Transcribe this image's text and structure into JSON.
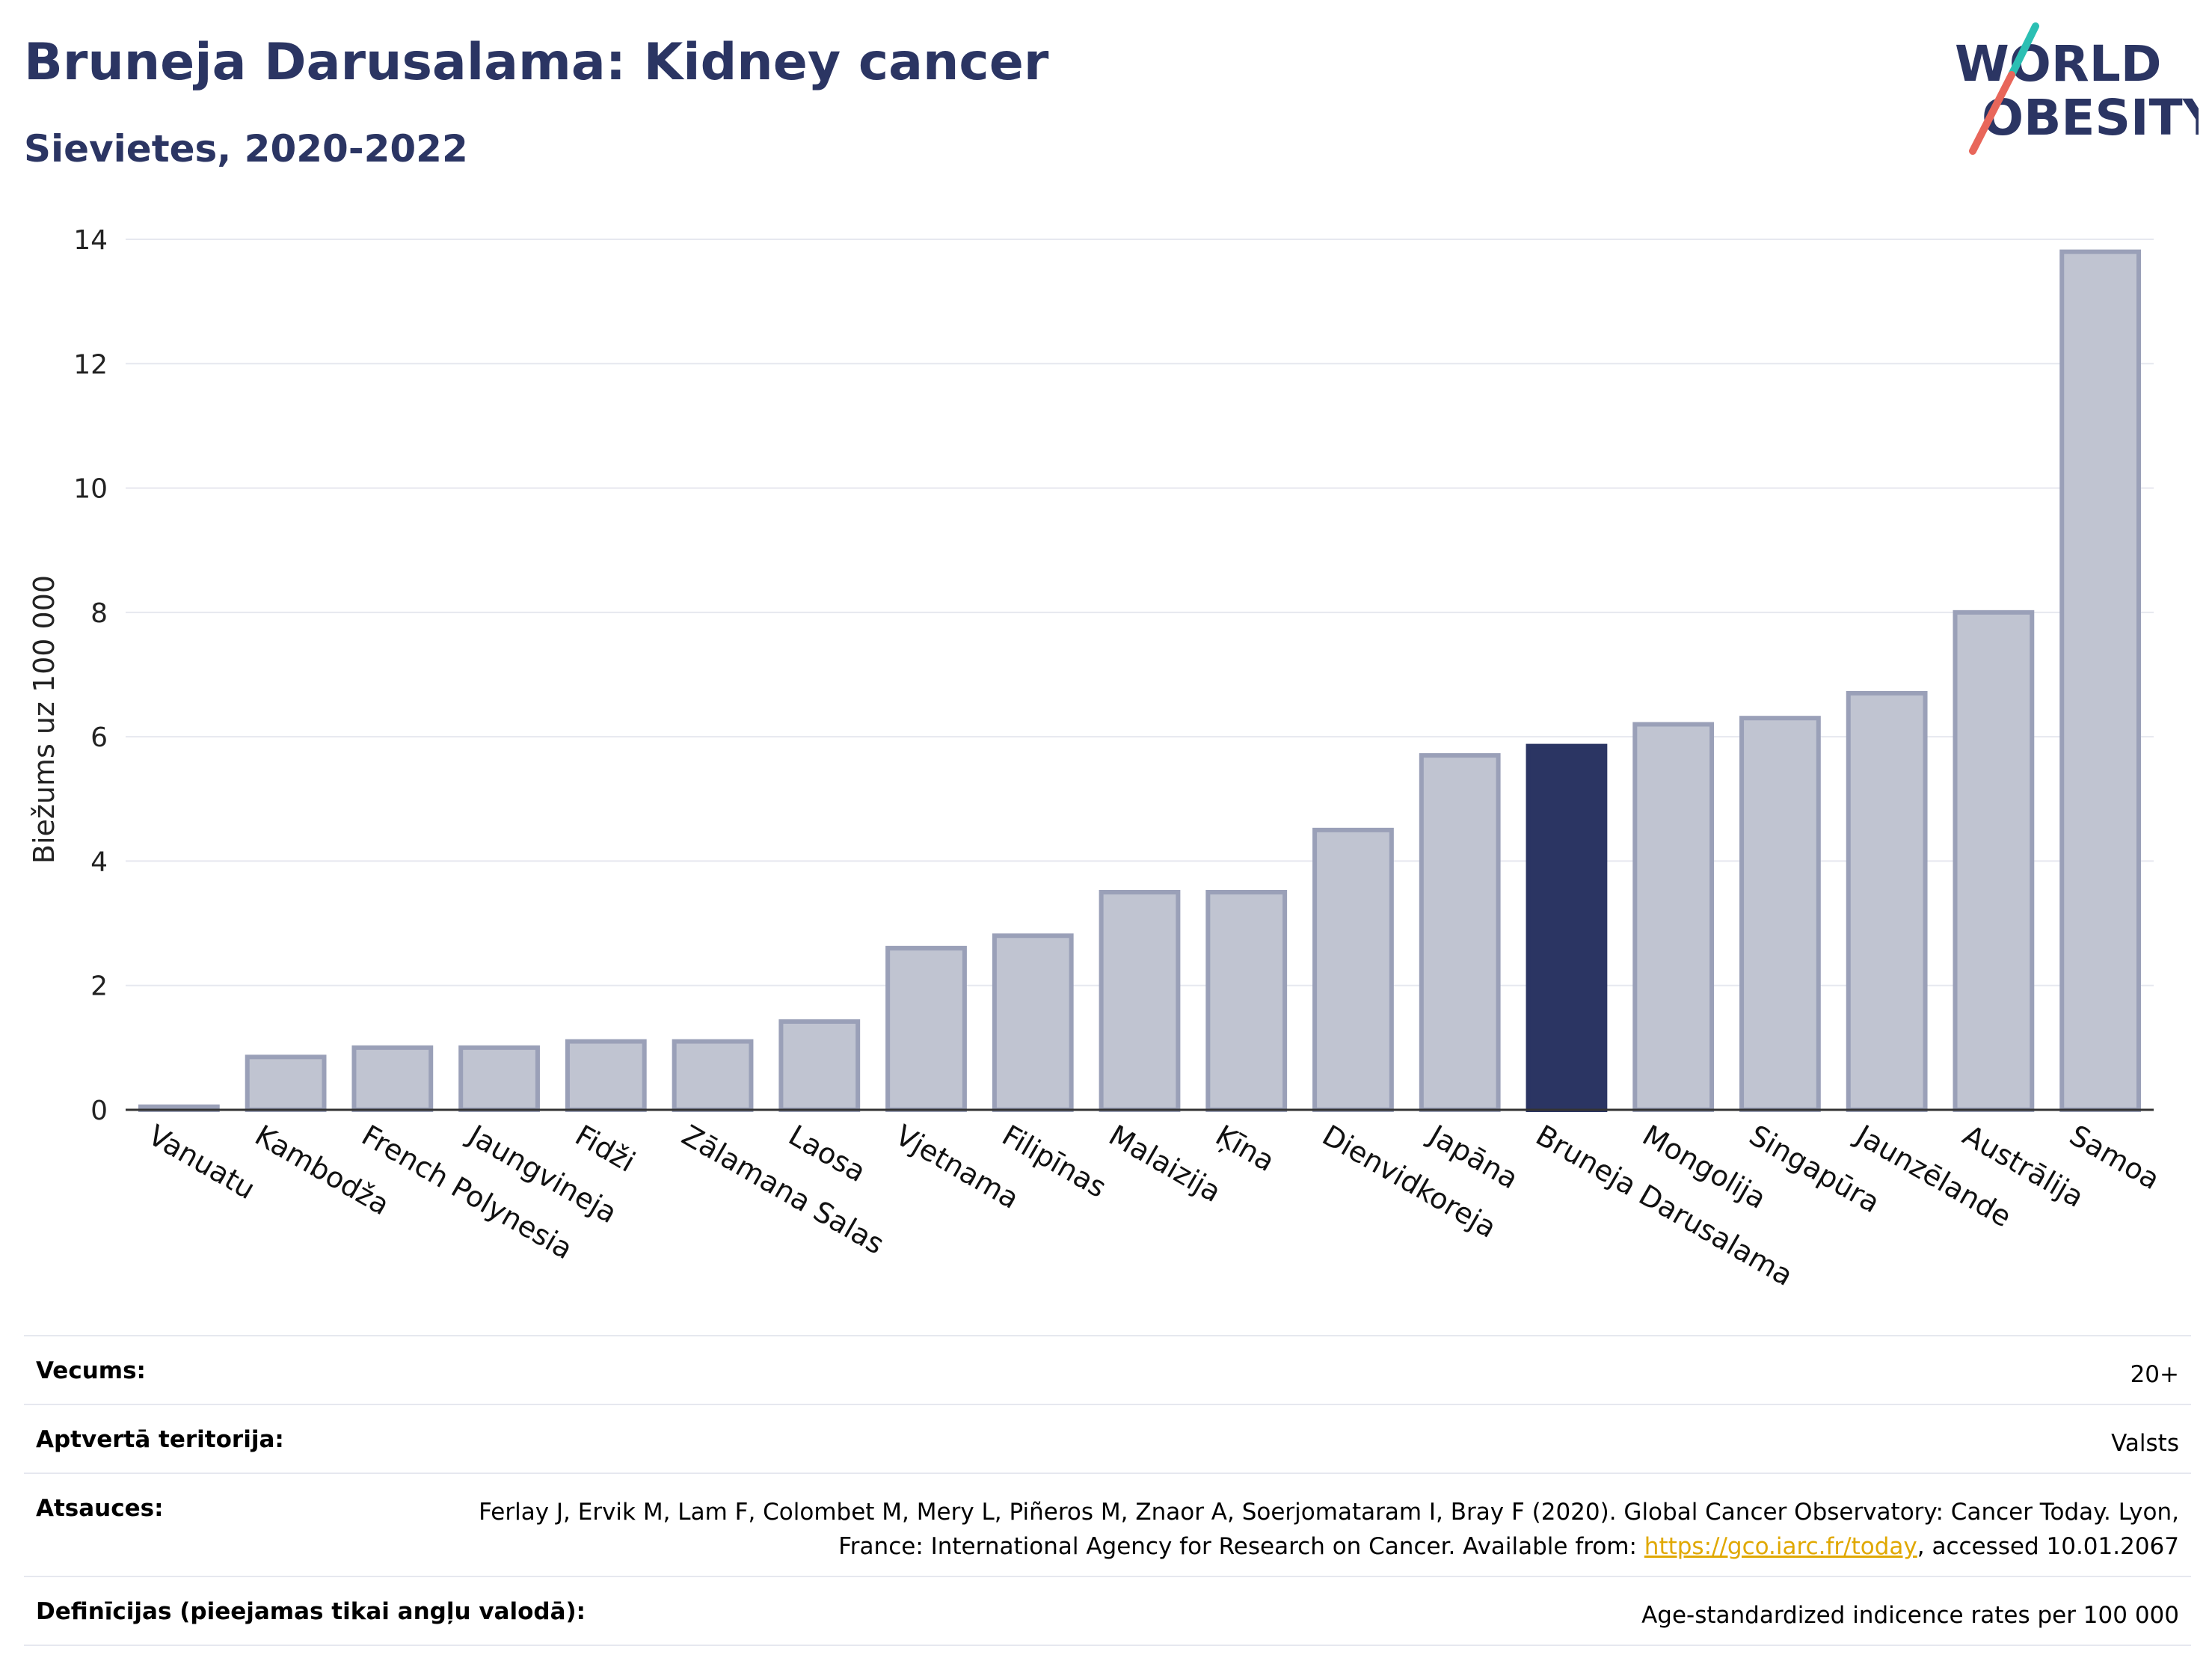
{
  "header": {
    "title": "Bruneja Darusalama: Kidney cancer",
    "subtitle": "Sievietes, 2020-2022",
    "logo_line1": "WORLD",
    "logo_line2": "OBESITY"
  },
  "colors": {
    "title": "#2b3563",
    "bar_default": "#c0c4d1",
    "bar_default_stroke": "#9aa0b8",
    "bar_highlight": "#2b3563",
    "grid": "#e6e8ef",
    "link": "#e0a800"
  },
  "chart_data": {
    "type": "bar",
    "title": "",
    "xlabel": "",
    "ylabel": "Biežums uz 100 000",
    "ylim": [
      0,
      14
    ],
    "yticks": [
      0,
      2,
      4,
      6,
      8,
      10,
      12,
      14
    ],
    "grid": true,
    "highlight": "Bruneja Darusalama",
    "categories": [
      "Vanuatu",
      "Kambodža",
      "French Polynesia",
      "Jaungvineja",
      "Fidži",
      "Zālamana Salas",
      "Laosa",
      "Vjetnama",
      "Filipīnas",
      "Malaizija",
      "Ķīna",
      "Dienvidkoreja",
      "Japāna",
      "Bruneja Darusalama",
      "Mongolija",
      "Singapūra",
      "Jaunzēlande",
      "Austrālija",
      "Samoa"
    ],
    "values": [
      0.05,
      0.85,
      1.0,
      1.0,
      1.1,
      1.1,
      1.42,
      2.6,
      2.8,
      3.5,
      3.5,
      4.5,
      5.7,
      5.85,
      6.2,
      6.3,
      6.7,
      8.0,
      13.8
    ]
  },
  "footer": {
    "rows": [
      {
        "label": "Vecums:",
        "value": "20+"
      },
      {
        "label": "Aptvertā teritorija:",
        "value": "Valsts"
      },
      {
        "label": "Atsauces:",
        "value_pre": "Ferlay J, Ervik M, Lam F, Colombet M, Mery L, Piñeros M, Znaor A, Soerjomataram I, Bray F (2020). Global Cancer Observatory: Cancer Today. Lyon, France: International Agency for Research on Cancer. Available from: ",
        "link": "https://gco.iarc.fr/today",
        "value_post": ", accessed 10.01.2067"
      },
      {
        "label": "Definīcijas (pieejamas tikai angļu valodā):",
        "value": "Age-standardized indicence rates per 100 000"
      }
    ]
  }
}
